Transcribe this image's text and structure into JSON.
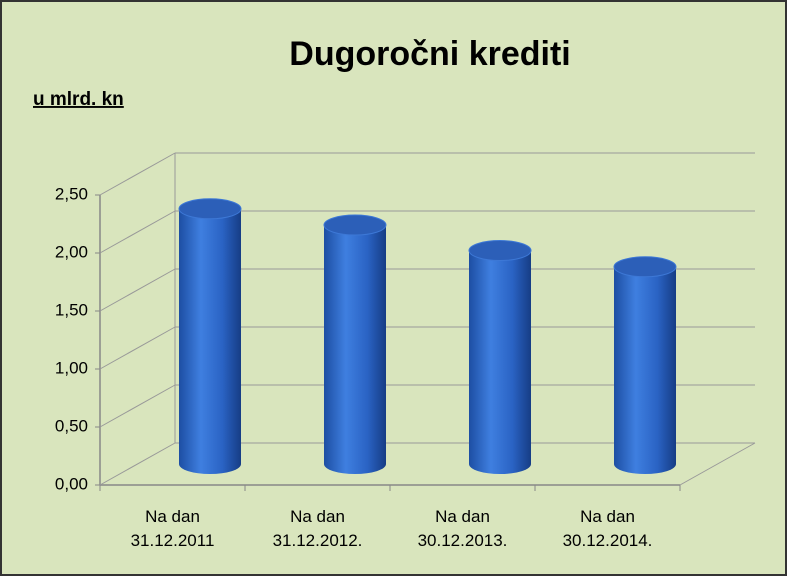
{
  "chart_data": {
    "type": "bar3d",
    "title": "Dugoročni krediti",
    "unit_label": "u mlrd. kn",
    "categories": [
      "Na dan\n31.12.2011",
      "Na dan\n31.12.2012.",
      "Na dan\n30.12.2013.",
      "Na dan\n30.12.2014."
    ],
    "values": [
      2.2,
      2.06,
      1.84,
      1.7
    ],
    "color": "#2a63c4",
    "ylim": [
      0,
      2.5
    ],
    "yticks": [
      {
        "value": 0,
        "label": "0,00"
      },
      {
        "value": 0.5,
        "label": "0,50"
      },
      {
        "value": 1,
        "label": "1,00"
      },
      {
        "value": 1.5,
        "label": "1,50"
      },
      {
        "value": 2,
        "label": "2,00"
      },
      {
        "value": 2.5,
        "label": "2,50"
      }
    ],
    "grid": true
  }
}
